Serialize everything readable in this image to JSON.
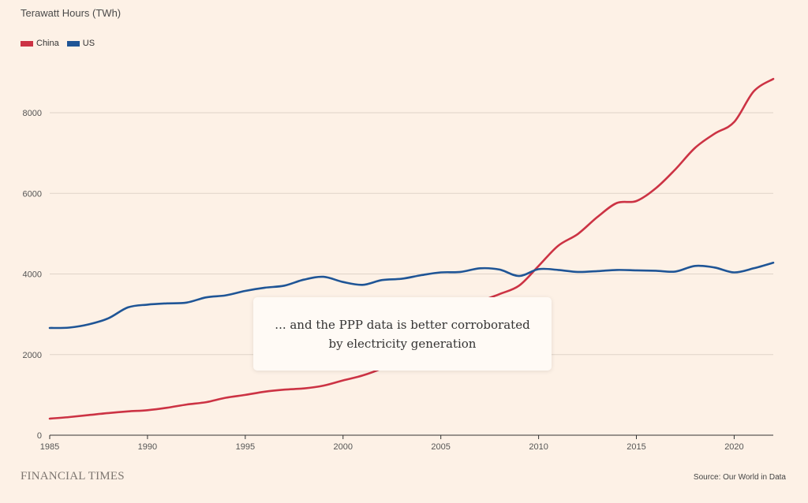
{
  "chart_data": {
    "type": "line",
    "unit_label": "Terawatt Hours (TWh)",
    "xlabel": "",
    "ylabel": "",
    "xlim": [
      1985,
      2022
    ],
    "ylim": [
      0,
      8000
    ],
    "x_ticks": [
      1985,
      1990,
      1995,
      2000,
      2005,
      2010,
      2015,
      2020
    ],
    "y_ticks": [
      0,
      2000,
      4000,
      6000,
      8000
    ],
    "grid": true,
    "legend_position": "top-left",
    "x": [
      1985,
      1986,
      1987,
      1988,
      1989,
      1990,
      1991,
      1992,
      1993,
      1994,
      1995,
      1996,
      1997,
      1998,
      1999,
      2000,
      2001,
      2002,
      2003,
      2004,
      2005,
      2006,
      2007,
      2008,
      2009,
      2010,
      2011,
      2012,
      2013,
      2014,
      2015,
      2016,
      2017,
      2018,
      2019,
      2020,
      2021,
      2022
    ],
    "series": [
      {
        "name": "China",
        "color": "#cc3344",
        "values": [
          410,
          450,
          500,
          550,
          590,
          620,
          680,
          760,
          820,
          930,
          1000,
          1080,
          1130,
          1160,
          1230,
          1360,
          1480,
          1660,
          1910,
          2200,
          2500,
          2870,
          3290,
          3500,
          3710,
          4200,
          4700,
          4990,
          5410,
          5760,
          5810,
          6130,
          6600,
          7130,
          7480,
          7770,
          8530,
          8840
        ]
      },
      {
        "name": "US",
        "color": "#1f5596",
        "values": [
          2660,
          2670,
          2750,
          2900,
          3170,
          3240,
          3270,
          3290,
          3420,
          3470,
          3580,
          3660,
          3710,
          3860,
          3930,
          3800,
          3730,
          3850,
          3880,
          3970,
          4040,
          4050,
          4140,
          4110,
          3950,
          4120,
          4100,
          4050,
          4070,
          4100,
          4090,
          4080,
          4060,
          4200,
          4160,
          4040,
          4140,
          4280
        ]
      }
    ]
  },
  "caption": "... and the PPP data is better corroborated by electricity generation",
  "brand": "FINANCIAL TIMES",
  "source": "Source: Our World in Data"
}
